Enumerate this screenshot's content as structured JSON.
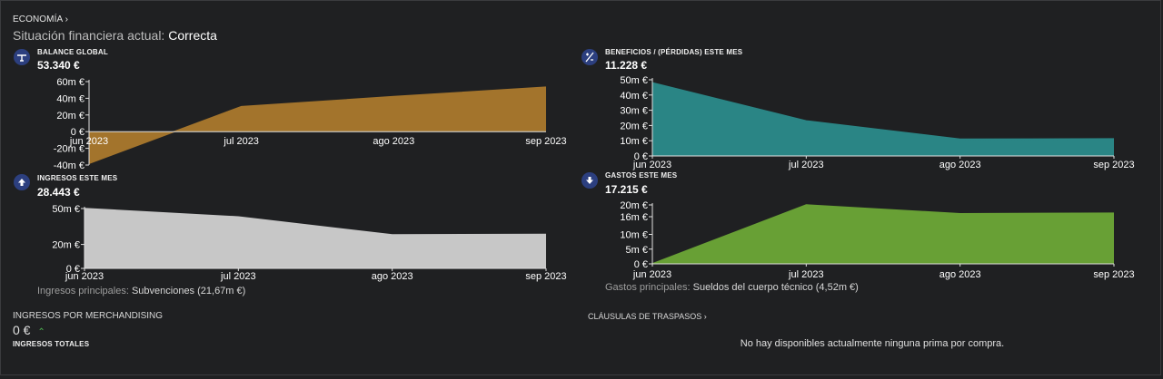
{
  "header": {
    "breadcrumb": "ECONOMÍA",
    "status_label": "Situación financiera actual:",
    "status_value": "Correcta"
  },
  "colors": {
    "background": "#1f2022",
    "icon_bg": "#2c3f7f",
    "balance": "#a3742c",
    "benefits": "#2a8585",
    "income": "#c7c7c7",
    "expenses": "#68a035"
  },
  "cards": {
    "balance": {
      "title": "BALANCE GLOBAL",
      "value": "53.340 €",
      "icon": "scale-icon",
      "y_ticks": [
        "60m €",
        "40m €",
        "20m €",
        "0 €",
        "-20m €",
        "-40m €"
      ],
      "x_ticks": [
        "jun 2023",
        "jul 2023",
        "ago 2023",
        "sep 2023"
      ]
    },
    "benefits": {
      "title": "BENEFICIOS / (PÉRDIDAS) ESTE MES",
      "value": "11.228 €",
      "icon": "plus-minus-icon",
      "y_ticks": [
        "50m €",
        "40m €",
        "30m €",
        "20m €",
        "10m €",
        "0 €"
      ],
      "x_ticks": [
        "jun 2023",
        "jul 2023",
        "ago 2023",
        "sep 2023"
      ]
    },
    "income": {
      "title": "INGRESOS ESTE MES",
      "value": "28.443 €",
      "icon": "arrow-up-icon",
      "y_ticks": [
        "50m €",
        "20m €",
        "0 €"
      ],
      "x_ticks": [
        "jun 2023",
        "jul 2023",
        "ago 2023",
        "sep 2023"
      ],
      "footer_label": "Ingresos principales:",
      "footer_value": "Subvenciones (21,67m €)"
    },
    "expenses": {
      "title": "GASTOS ESTE MES",
      "value": "17.215 €",
      "icon": "arrow-down-icon",
      "y_ticks": [
        "20m €",
        "16m €",
        "10m €",
        "5m €",
        "0 €"
      ],
      "x_ticks": [
        "jun 2023",
        "jul 2023",
        "ago 2023",
        "sep 2023"
      ],
      "footer_label": "Gastos principales:",
      "footer_value": "Sueldos del cuerpo técnico (4,52m €)"
    }
  },
  "merch": {
    "title": "INGRESOS POR MERCHANDISING",
    "value": "0 €",
    "total_label": "INGRESOS TOTALES"
  },
  "transfers": {
    "title": "CLÁUSULAS DE TRASPASOS",
    "empty_text": "No hay disponibles actualmente ninguna prima por compra."
  },
  "chart_data": [
    {
      "type": "area",
      "title": "BALANCE GLOBAL",
      "x": [
        "jun 2023",
        "jul 2023",
        "ago 2023",
        "sep 2023"
      ],
      "values": [
        -38,
        30,
        42,
        53.34
      ],
      "ylim": [
        -40,
        60
      ],
      "unit": "m €"
    },
    {
      "type": "area",
      "title": "BENEFICIOS / (PÉRDIDAS) ESTE MES",
      "x": [
        "jun 2023",
        "jul 2023",
        "ago 2023",
        "sep 2023"
      ],
      "values": [
        48,
        23,
        11,
        11.23
      ],
      "ylim": [
        0,
        50
      ],
      "unit": "m €"
    },
    {
      "type": "area",
      "title": "INGRESOS ESTE MES",
      "x": [
        "jun 2023",
        "jul 2023",
        "ago 2023",
        "sep 2023"
      ],
      "values": [
        50,
        43,
        28,
        28.44
      ],
      "ylim": [
        0,
        50
      ],
      "unit": "m €"
    },
    {
      "type": "area",
      "title": "GASTOS ESTE MES",
      "x": [
        "jun 2023",
        "jul 2023",
        "ago 2023",
        "sep 2023"
      ],
      "values": [
        0,
        20,
        17,
        17.2
      ],
      "ylim": [
        0,
        20
      ],
      "unit": "m €"
    }
  ]
}
